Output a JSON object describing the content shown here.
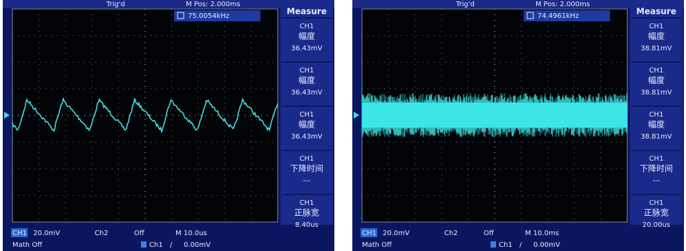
{
  "scopes": [
    {
      "status": "Trig'd",
      "m_pos": "M Pos: 2.000ms",
      "menu_title": "Measure",
      "frequency": "75.0054kHz",
      "measurements": [
        {
          "channel": "CH1",
          "label": "幅度",
          "value": "36.43mV"
        },
        {
          "channel": "CH1",
          "label": "幅度",
          "value": "36.43mV"
        },
        {
          "channel": "CH1",
          "label": "幅度",
          "value": "36.43mV"
        },
        {
          "channel": "CH1",
          "label": "下降时间",
          "value": "---"
        },
        {
          "channel": "CH1",
          "label": "正脉宽",
          "value": "8.40us"
        }
      ],
      "bottom": {
        "ch1": "CH1",
        "ch1_scale": "20.0mV",
        "ch2": "Ch2",
        "ch2_state": "Off",
        "timebase": "M 10.0us",
        "math": "Math Off",
        "trig_source": "Ch1",
        "trig_slope": "/",
        "trig_level": "0.00mV"
      }
    },
    {
      "status": "Trig'd",
      "m_pos": "M Pos: 2.000ms",
      "menu_title": "Measure",
      "frequency": "74.4961kHz",
      "measurements": [
        {
          "channel": "CH1",
          "label": "幅度",
          "value": "38.81mV"
        },
        {
          "channel": "CH1",
          "label": "幅度",
          "value": "38.81mV"
        },
        {
          "channel": "CH1",
          "label": "幅度",
          "value": "38.81mV"
        },
        {
          "channel": "CH1",
          "label": "下降时间",
          "value": "---"
        },
        {
          "channel": "CH1",
          "label": "正脉宽",
          "value": "20.00us"
        }
      ],
      "bottom": {
        "ch1": "CH1",
        "ch1_scale": "20.0mV",
        "ch2": "Ch2",
        "ch2_state": "Off",
        "timebase": "M 10.0ms",
        "math": "Math Off",
        "trig_source": "Ch1",
        "trig_slope": "/",
        "trig_level": "0.00mV"
      }
    }
  ]
}
